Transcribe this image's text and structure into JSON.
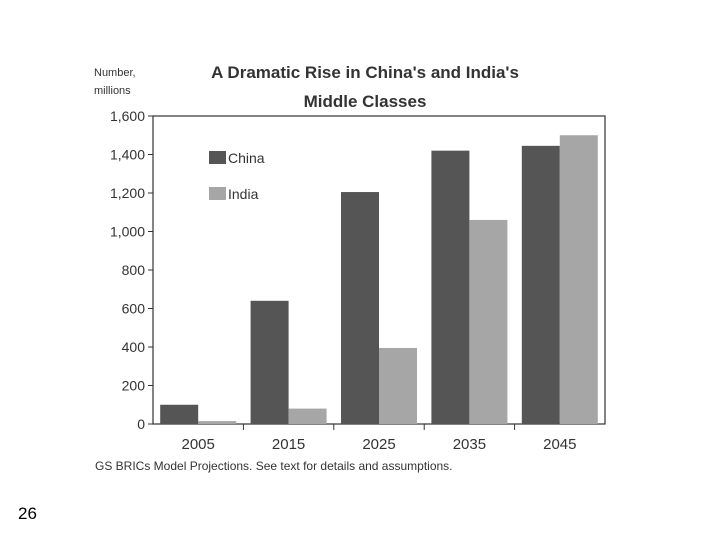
{
  "chart_data": {
    "type": "bar",
    "title_line1": "A Dramatic Rise in China's and India's",
    "title_line2": "Middle Classes",
    "ylabel_line1": "Number,",
    "ylabel_line2": "millions",
    "xlabel": "",
    "ylim": [
      0,
      1600
    ],
    "yticks": [
      0,
      200,
      400,
      600,
      800,
      1000,
      1200,
      1400,
      1600
    ],
    "ytick_labels": [
      "0",
      "200",
      "400",
      "600",
      "800",
      "1,000",
      "1,200",
      "1,400",
      "1,600"
    ],
    "categories": [
      "2005",
      "2015",
      "2025",
      "2035",
      "2045"
    ],
    "series": [
      {
        "name": "China",
        "color": "#555555",
        "values": [
          100,
          640,
          1205,
          1420,
          1445
        ]
      },
      {
        "name": "India",
        "color": "#a6a6a6",
        "values": [
          15,
          80,
          395,
          1060,
          1500
        ]
      }
    ],
    "legend_position": "top-left",
    "grid": false,
    "source_note": "GS BRICs Model Projections. See text for details and assumptions."
  },
  "slide": {
    "number": "26"
  }
}
